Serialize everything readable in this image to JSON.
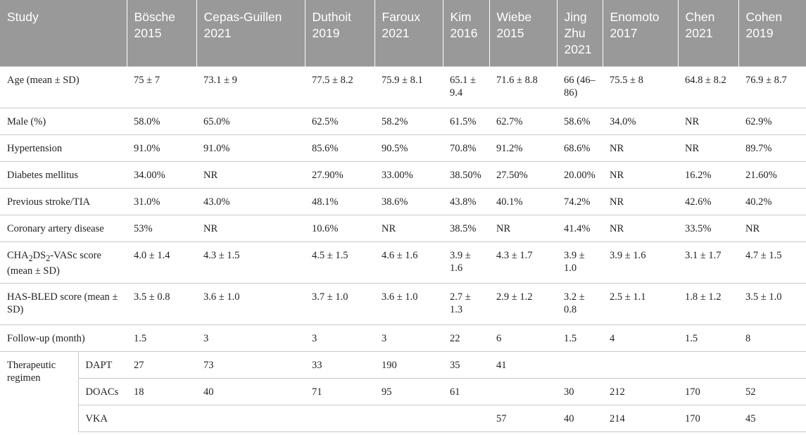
{
  "table": {
    "header": {
      "study": "Study",
      "columns": [
        {
          "line1": "Bösche",
          "line2": "2015"
        },
        {
          "line1": "Cepas-Guillen",
          "line2": "2021"
        },
        {
          "line1": "Duthoit",
          "line2": "2019"
        },
        {
          "line1": "Faroux",
          "line2": "2021"
        },
        {
          "line1": "Kim",
          "line2": "2016"
        },
        {
          "line1": "Wiebe",
          "line2": "2015"
        },
        {
          "line1": "Jing",
          "line2": "Zhu",
          "line3": "2021"
        },
        {
          "line1": "Enomoto",
          "line2": "2017"
        },
        {
          "line1": "Chen",
          "line2": "2021"
        },
        {
          "line1": "Cohen",
          "line2": "2019"
        }
      ]
    },
    "rows": [
      {
        "label": "Age (mean ± SD)",
        "values": [
          "75 ± 7",
          "73.1 ± 9",
          "77.5 ± 8.2",
          "75.9 ± 8.1",
          "65.1 ± 9.4",
          "71.6 ± 8.8",
          "66 (46–86)",
          "75.5 ± 8",
          "64.8 ± 8.2",
          "76.9 ± 8.7"
        ]
      },
      {
        "label": "Male (%)",
        "values": [
          "58.0%",
          "65.0%",
          "62.5%",
          "58.2%",
          "61.5%",
          "62.7%",
          "58.6%",
          "34.0%",
          "NR",
          "62.9%"
        ]
      },
      {
        "label": "Hypertension",
        "values": [
          "91.0%",
          "91.0%",
          "85.6%",
          "90.5%",
          "70.8%",
          "91.2%",
          "68.6%",
          "NR",
          "NR",
          "89.7%"
        ]
      },
      {
        "label": "Diabetes mellitus",
        "values": [
          "34.00%",
          "NR",
          "27.90%",
          "33.00%",
          "38.50%",
          "27.50%",
          "20.00%",
          "NR",
          "16.2%",
          "21.60%"
        ]
      },
      {
        "label": "Previous stroke/TIA",
        "values": [
          "31.0%",
          "43.0%",
          "48.1%",
          "38.6%",
          "43.8%",
          "40.1%",
          "74.2%",
          "NR",
          "42.6%",
          "40.2%"
        ]
      },
      {
        "label": "Coronary artery disease",
        "values": [
          "53%",
          "NR",
          "10.6%",
          "NR",
          "38.5%",
          "NR",
          "41.4%",
          "NR",
          "33.5%",
          "NR"
        ]
      },
      {
        "label_parts": {
          "a": "CHA",
          "b": "2",
          "c": "DS",
          "d": "2",
          "e": "-VASc score (mean ± SD)"
        },
        "values": [
          "4.0 ± 1.4",
          "4.3 ± 1.5",
          "4.5 ± 1.5",
          "4.6 ± 1.6",
          "3.9 ± 1.6",
          "4.3 ± 1.7",
          "3.9 ± 1.0",
          "3.9 ± 1.6",
          "3.1 ± 1.7",
          "4.7 ± 1.5"
        ]
      },
      {
        "label": "HAS-BLED score (mean ± SD)",
        "values": [
          "3.5 ± 0.8",
          "3.6 ± 1.0",
          "3.7 ± 1.0",
          "3.6 ± 1.0",
          "2.7 ± 1.3",
          "2.9 ± 1.2",
          "3.2 ± 0.8",
          "2.5 ± 1.1",
          "1.8 ± 1.2",
          "3.5 ± 1.0"
        ]
      },
      {
        "label": "Follow-up (month)",
        "values": [
          "1.5",
          "3",
          "3",
          "3",
          "22",
          "6",
          "1.5",
          "4",
          "1.5",
          "8"
        ]
      }
    ],
    "regimen": {
      "group_label": "Therapeutic regimen",
      "rows": [
        {
          "label": "DAPT",
          "values": [
            "27",
            "73",
            "33",
            "190",
            "35",
            "41",
            "",
            "",
            "",
            ""
          ]
        },
        {
          "label": "DOACs",
          "values": [
            "18",
            "40",
            "71",
            "95",
            "61",
            "",
            "30",
            "212",
            "170",
            "52"
          ]
        },
        {
          "label": "VKA",
          "values": [
            "",
            "",
            "",
            "",
            "",
            "57",
            "40",
            "214",
            "170",
            "45"
          ]
        }
      ]
    }
  }
}
